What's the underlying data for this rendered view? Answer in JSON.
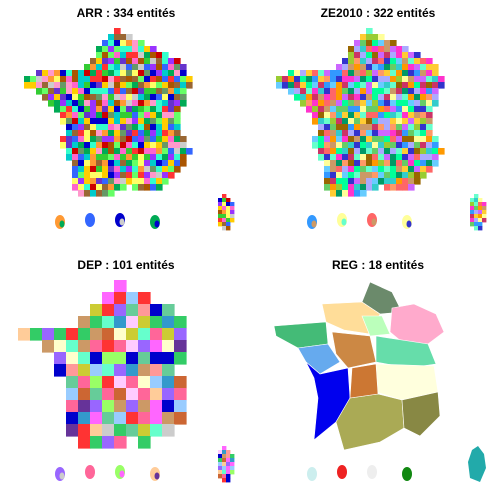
{
  "panels": [
    {
      "id": "arr",
      "title": "ARR : 334 entités",
      "palette": [
        "#ff3333",
        "#33cc33",
        "#3366ff",
        "#ffcc00",
        "#ff66cc",
        "#00cccc",
        "#996633",
        "#9933ff",
        "#ff9933",
        "#66ff66",
        "#cc0000",
        "#0000cc",
        "#ffff66",
        "#669966",
        "#ff99cc",
        "#33ffcc",
        "#cccccc",
        "#6633cc",
        "#00aa55",
        "#aa5500"
      ]
    },
    {
      "id": "ze2010",
      "title": "ZE2010 : 322 entités",
      "palette": [
        "#66ffcc",
        "#ff6666",
        "#3399ff",
        "#ffcc33",
        "#cc66ff",
        "#99cc33",
        "#ff9966",
        "#33cccc",
        "#cc3366",
        "#66cc66",
        "#ffff99",
        "#3333cc",
        "#ff33cc",
        "#996600",
        "#00ff99",
        "#aaaaff",
        "#ff9900",
        "#009966",
        "#cc9966",
        "#66ccff"
      ]
    },
    {
      "id": "dep",
      "title": "DEP : 101 entités",
      "palette": [
        "#ff66ff",
        "#33cc66",
        "#0000cc",
        "#ffcc99",
        "#ff3333",
        "#99ccff",
        "#cccc33",
        "#66ffcc",
        "#cc9966",
        "#ffccff",
        "#663399",
        "#ff9999",
        "#99ff66",
        "#3399cc",
        "#ffffcc",
        "#cc6633",
        "#9966ff",
        "#66cc99",
        "#ff6699",
        "#cccccc"
      ]
    },
    {
      "id": "reg",
      "title": "REG : 18 entités",
      "palette": [
        "#6b8a6b",
        "#ffdd99",
        "#bbffbb",
        "#ffaacc",
        "#44bb77",
        "#66aaee",
        "#cc8844",
        "#66ddaa",
        "#0000ee",
        "#ffffdd",
        "#aaaa55",
        "#cc7733",
        "#888844",
        "#22aaaa",
        "#cceeee",
        "#ee2222",
        "#eeeeee",
        "#118811"
      ]
    }
  ]
}
